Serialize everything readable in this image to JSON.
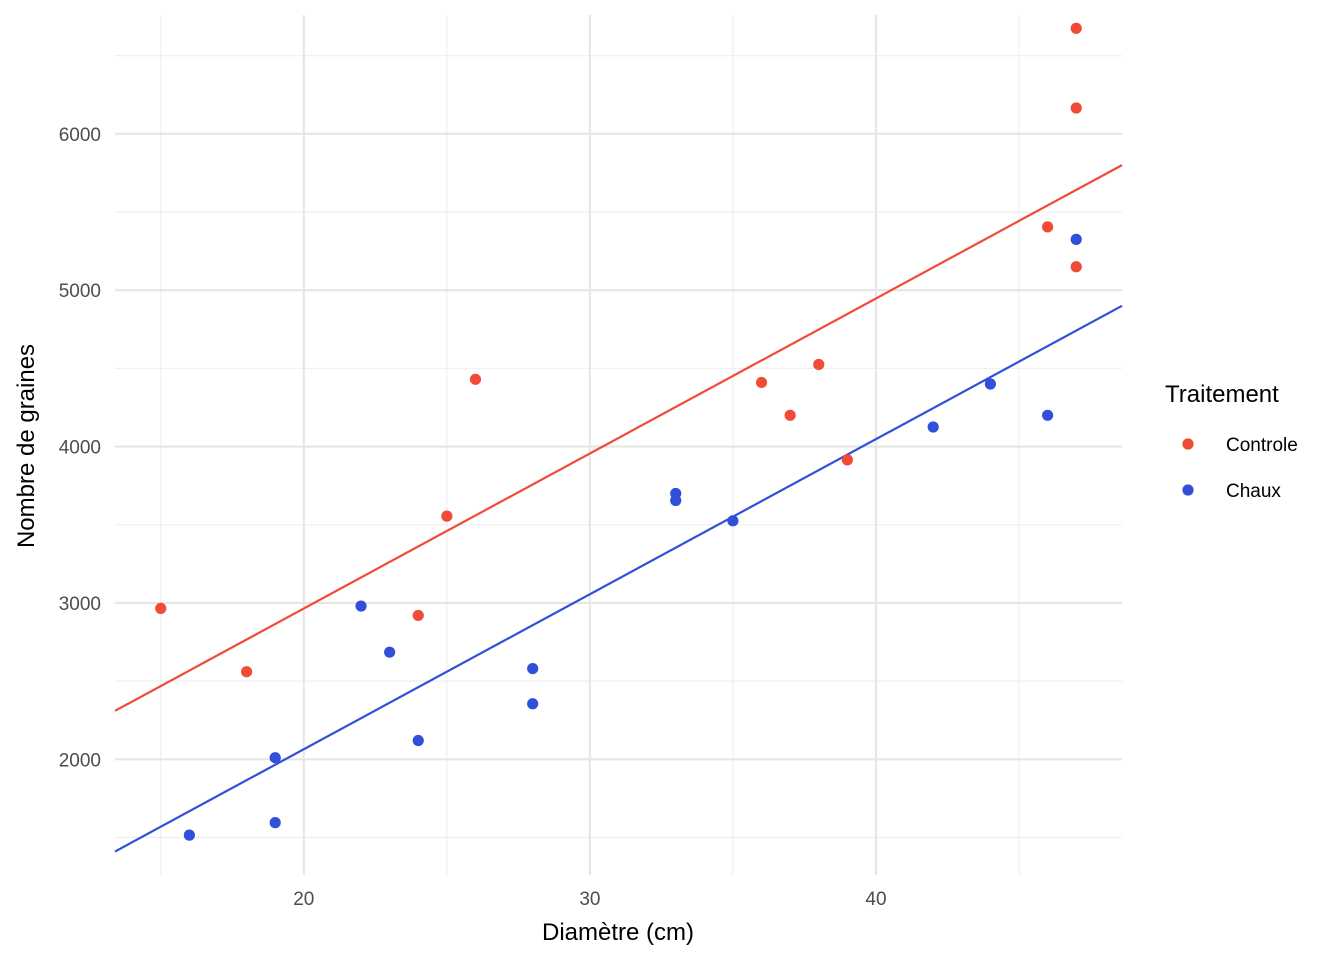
{
  "chart_data": {
    "type": "scatter",
    "title": "",
    "xlabel": "Diamètre (cm)",
    "ylabel": "Nombre de graines",
    "xlim": [
      13.4,
      48.6
    ],
    "ylim": [
      1260,
      6760
    ],
    "x_ticks": [
      20,
      30,
      40
    ],
    "y_ticks": [
      2000,
      3000,
      4000,
      5000,
      6000
    ],
    "x_minor_ticks": [
      15,
      25,
      35,
      45
    ],
    "y_minor_ticks": [
      1500,
      2500,
      3500,
      4500,
      5500,
      6500
    ],
    "grid": true,
    "legend": {
      "title": "Traitement",
      "position": "right",
      "entries": [
        "Controle",
        "Chaux"
      ]
    },
    "series": [
      {
        "name": "Controle",
        "color": "#F14A36",
        "points": [
          {
            "x": 15,
            "y": 2965
          },
          {
            "x": 18,
            "y": 2560
          },
          {
            "x": 24,
            "y": 2920
          },
          {
            "x": 25,
            "y": 3555
          },
          {
            "x": 26,
            "y": 4430
          },
          {
            "x": 36,
            "y": 4410
          },
          {
            "x": 37,
            "y": 4200
          },
          {
            "x": 38,
            "y": 4525
          },
          {
            "x": 39,
            "y": 3915
          },
          {
            "x": 46,
            "y": 5405
          },
          {
            "x": 47,
            "y": 5150
          },
          {
            "x": 47,
            "y": 6165
          },
          {
            "x": 47,
            "y": 6675
          }
        ],
        "fit_line": {
          "x": [
            13.4,
            48.6
          ],
          "y": [
            2310,
            5800
          ]
        }
      },
      {
        "name": "Chaux",
        "color": "#3050DA",
        "points": [
          {
            "x": 16,
            "y": 1515
          },
          {
            "x": 19,
            "y": 2010
          },
          {
            "x": 19,
            "y": 1595
          },
          {
            "x": 22,
            "y": 2980
          },
          {
            "x": 23,
            "y": 2685
          },
          {
            "x": 24,
            "y": 2120
          },
          {
            "x": 28,
            "y": 2580
          },
          {
            "x": 28,
            "y": 2355
          },
          {
            "x": 33,
            "y": 3700
          },
          {
            "x": 33,
            "y": 3655
          },
          {
            "x": 35,
            "y": 3525
          },
          {
            "x": 42,
            "y": 4125
          },
          {
            "x": 44,
            "y": 4400
          },
          {
            "x": 46,
            "y": 4200
          },
          {
            "x": 47,
            "y": 5325
          }
        ],
        "fit_line": {
          "x": [
            13.4,
            48.6
          ],
          "y": [
            1410,
            4900
          ]
        }
      }
    ]
  }
}
